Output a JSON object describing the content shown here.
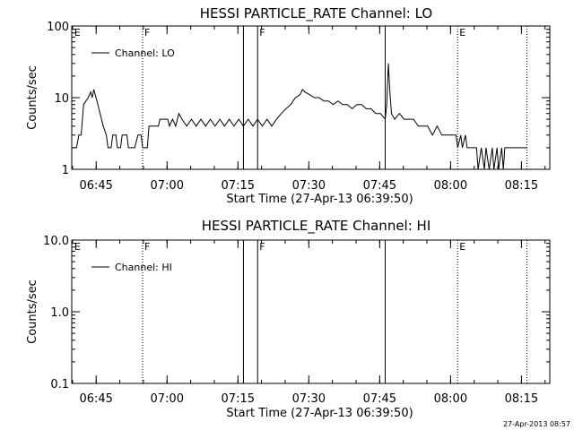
{
  "footer_timestamp": "27-Apr-2013 08:57",
  "chart_data": [
    {
      "type": "line",
      "title": "HESSI PARTICLE_RATE Channel: LO",
      "xlabel": "Start Time (27-Apr-13 06:39:50)",
      "ylabel": "Counts/sec",
      "y_scale": "log",
      "ylim": [
        1,
        100
      ],
      "yticks": [
        1,
        10,
        100
      ],
      "yticklabels": [
        "1",
        "10",
        "100"
      ],
      "xlim": [
        "06:39:50",
        "08:21:00"
      ],
      "xticks": [
        "06:45",
        "07:00",
        "07:15",
        "07:30",
        "07:45",
        "08:00",
        "08:15"
      ],
      "legend": {
        "label": "Channel: LO",
        "position": "top-left"
      },
      "markers": [
        {
          "time": "06:40:00",
          "label": "E",
          "style": "none"
        },
        {
          "time": "06:54:50",
          "label": "F",
          "style": "dotted"
        },
        {
          "time": "07:16:10",
          "label": "",
          "style": "solid"
        },
        {
          "time": "07:19:10",
          "label": "F",
          "style": "solid"
        },
        {
          "time": "07:46:10",
          "label": "",
          "style": "solid"
        },
        {
          "time": "08:01:30",
          "label": "E",
          "style": "dotted"
        },
        {
          "time": "08:16:10",
          "label": "",
          "style": "dotted"
        }
      ],
      "series": [
        {
          "name": "Channel: LO",
          "segments": [
            [
              [
                "06:40:00",
                2
              ],
              [
                "06:40:50",
                2
              ],
              [
                "06:41:20",
                3
              ],
              [
                "06:41:50",
                3
              ],
              [
                "06:42:20",
                8
              ],
              [
                "06:42:50",
                9
              ],
              [
                "06:43:20",
                10
              ],
              [
                "06:43:50",
                12
              ],
              [
                "06:44:10",
                10
              ],
              [
                "06:44:30",
                13
              ],
              [
                "06:45:10",
                9
              ],
              [
                "06:45:50",
                6
              ],
              [
                "06:46:30",
                4
              ],
              [
                "06:47:10",
                3
              ],
              [
                "06:47:30",
                2
              ],
              [
                "06:48:10",
                2
              ],
              [
                "06:48:30",
                3
              ],
              [
                "06:49:10",
                3
              ],
              [
                "06:49:30",
                2
              ],
              [
                "06:50:10",
                2
              ],
              [
                "06:50:30",
                3
              ],
              [
                "06:51:30",
                3
              ],
              [
                "06:51:50",
                2
              ],
              [
                "06:53:10",
                2
              ],
              [
                "06:53:50",
                3
              ],
              [
                "06:54:30",
                3
              ],
              [
                "06:54:50",
                2
              ],
              [
                "06:55:50",
                2
              ],
              [
                "06:56:10",
                4
              ],
              [
                "06:58:10",
                4
              ],
              [
                "06:58:30",
                5
              ],
              [
                "07:00:10",
                5
              ],
              [
                "07:00:30",
                4
              ],
              [
                "07:01:10",
                5
              ],
              [
                "07:01:50",
                4
              ],
              [
                "07:02:30",
                6
              ],
              [
                "07:03:10",
                5
              ],
              [
                "07:04:10",
                4
              ],
              [
                "07:05:10",
                5
              ],
              [
                "07:06:10",
                4
              ],
              [
                "07:07:10",
                5
              ],
              [
                "07:08:10",
                4
              ],
              [
                "07:09:10",
                5
              ],
              [
                "07:10:10",
                4
              ],
              [
                "07:11:10",
                5
              ],
              [
                "07:12:10",
                4
              ],
              [
                "07:13:10",
                5
              ],
              [
                "07:14:10",
                4
              ],
              [
                "07:15:10",
                5
              ],
              [
                "07:16:10",
                4
              ],
              [
                "07:17:10",
                5
              ],
              [
                "07:18:10",
                4
              ],
              [
                "07:19:10",
                5
              ],
              [
                "07:20:10",
                4
              ],
              [
                "07:21:10",
                5
              ],
              [
                "07:22:10",
                4
              ],
              [
                "07:23:10",
                5
              ],
              [
                "07:24:10",
                6
              ],
              [
                "07:25:10",
                7
              ],
              [
                "07:26:10",
                8
              ],
              [
                "07:27:10",
                10
              ],
              [
                "07:28:10",
                11
              ],
              [
                "07:28:40",
                13
              ],
              [
                "07:29:10",
                12
              ],
              [
                "07:30:10",
                11
              ],
              [
                "07:31:10",
                10
              ],
              [
                "07:32:10",
                10
              ],
              [
                "07:33:10",
                9
              ],
              [
                "07:34:10",
                9
              ],
              [
                "07:35:10",
                8
              ],
              [
                "07:36:10",
                9
              ],
              [
                "07:37:10",
                8
              ],
              [
                "07:38:10",
                8
              ],
              [
                "07:39:10",
                7
              ],
              [
                "07:40:10",
                8
              ],
              [
                "07:41:10",
                8
              ],
              [
                "07:42:10",
                7
              ],
              [
                "07:43:10",
                7
              ],
              [
                "07:44:10",
                6
              ],
              [
                "07:45:10",
                6
              ],
              [
                "07:46:10",
                5
              ],
              [
                "07:46:30",
                8
              ],
              [
                "07:46:50",
                30
              ],
              [
                "07:47:10",
                12
              ],
              [
                "07:47:30",
                6
              ],
              [
                "07:48:10",
                5
              ],
              [
                "07:49:10",
                6
              ],
              [
                "07:50:10",
                5
              ],
              [
                "07:51:10",
                5
              ],
              [
                "07:52:10",
                5
              ],
              [
                "07:53:10",
                4
              ],
              [
                "07:54:10",
                4
              ],
              [
                "07:55:10",
                4
              ],
              [
                "07:56:10",
                3
              ],
              [
                "07:57:10",
                4
              ],
              [
                "07:58:10",
                3
              ],
              [
                "07:59:10",
                3
              ],
              [
                "08:00:10",
                3
              ],
              [
                "08:01:10",
                3
              ],
              [
                "08:01:30",
                2
              ],
              [
                "08:02:10",
                3
              ],
              [
                "08:02:30",
                2
              ],
              [
                "08:03:10",
                3
              ],
              [
                "08:03:30",
                2
              ],
              [
                "08:04:10",
                2
              ],
              [
                "08:04:30",
                2
              ],
              [
                "08:05:30",
                2
              ],
              [
                "08:05:50",
                1
              ],
              [
                "08:06:30",
                2
              ],
              [
                "08:07:10",
                1
              ],
              [
                "08:07:30",
                2
              ],
              [
                "08:08:10",
                1
              ],
              [
                "08:08:50",
                2
              ],
              [
                "08:09:10",
                1
              ],
              [
                "08:09:50",
                2
              ],
              [
                "08:10:10",
                1
              ],
              [
                "08:10:50",
                2
              ],
              [
                "08:11:10",
                1
              ],
              [
                "08:11:30",
                2
              ],
              [
                "08:16:10",
                2
              ]
            ]
          ]
        }
      ]
    },
    {
      "type": "line",
      "title": "HESSI PARTICLE_RATE Channel: HI",
      "xlabel": "Start Time (27-Apr-13 06:39:50)",
      "ylabel": "Counts/sec",
      "y_scale": "log",
      "ylim": [
        0.1,
        10
      ],
      "yticks": [
        0.1,
        1,
        10
      ],
      "yticklabels": [
        "0.1",
        "1.0",
        "10.0"
      ],
      "xlim": [
        "06:39:50",
        "08:21:00"
      ],
      "xticks": [
        "06:45",
        "07:00",
        "07:15",
        "07:30",
        "07:45",
        "08:00",
        "08:15"
      ],
      "legend": {
        "label": "Channel: HI",
        "position": "top-left"
      },
      "markers": [
        {
          "time": "06:40:00",
          "label": "E",
          "style": "none"
        },
        {
          "time": "06:54:50",
          "label": "F",
          "style": "dotted"
        },
        {
          "time": "07:16:10",
          "label": "",
          "style": "solid"
        },
        {
          "time": "07:19:10",
          "label": "F",
          "style": "solid"
        },
        {
          "time": "07:46:10",
          "label": "",
          "style": "solid"
        },
        {
          "time": "08:01:30",
          "label": "E",
          "style": "dotted"
        },
        {
          "time": "08:16:10",
          "label": "",
          "style": "dotted"
        }
      ],
      "series": [
        {
          "name": "Channel: HI",
          "segments": []
        }
      ]
    }
  ]
}
